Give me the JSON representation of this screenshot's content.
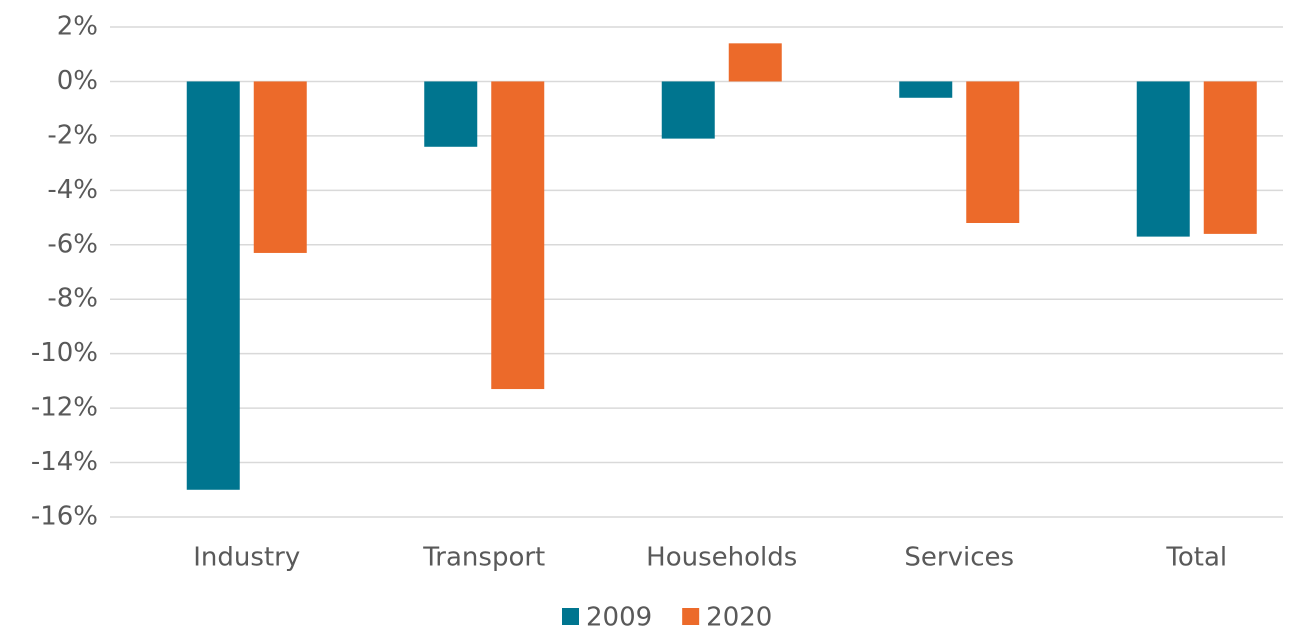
{
  "chart_data": {
    "type": "bar",
    "categories": [
      "Industry",
      "Transport",
      "Households",
      "Services",
      "Total"
    ],
    "series": [
      {
        "name": "2009",
        "color": "#00758f",
        "values": [
          -15.0,
          -2.4,
          -2.1,
          -0.6,
          -5.7
        ]
      },
      {
        "name": "2020",
        "color": "#ec6a2a",
        "values": [
          -6.3,
          -11.3,
          1.4,
          -5.2,
          -5.6
        ]
      }
    ],
    "ylim": [
      -16,
      2
    ],
    "yticks": [
      {
        "value": 2,
        "label": "2%"
      },
      {
        "value": 0,
        "label": "0%"
      },
      {
        "value": -2,
        "label": "-2%"
      },
      {
        "value": -4,
        "label": "-4%"
      },
      {
        "value": -6,
        "label": "-6%"
      },
      {
        "value": -8,
        "label": "-8%"
      },
      {
        "value": -10,
        "label": "-10%"
      },
      {
        "value": -12,
        "label": "-12%"
      },
      {
        "value": -14,
        "label": "-14%"
      },
      {
        "value": -16,
        "label": "-16%"
      }
    ],
    "grid": true,
    "legend": "bottom"
  }
}
